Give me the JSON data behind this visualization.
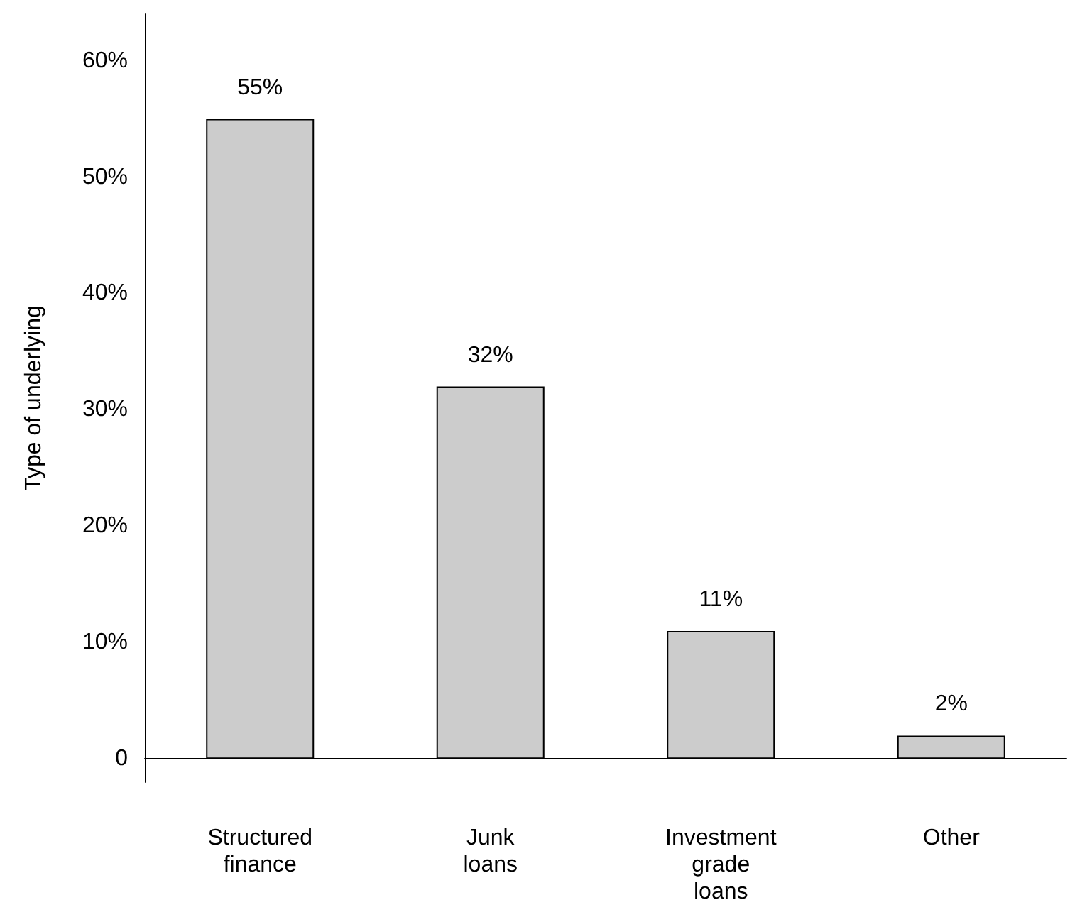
{
  "chart_data": {
    "type": "bar",
    "ylabel": "Type of underlying",
    "categories": [
      "Structured\nfinance",
      "Junk\nloans",
      "Investment\ngrade\nloans",
      "Other"
    ],
    "values": [
      55,
      32,
      11,
      2
    ],
    "value_labels": [
      "55%",
      "32%",
      "11%",
      "2%"
    ],
    "color": "#cccccc",
    "ylim": [
      -2,
      64
    ],
    "yticks": [
      {
        "value": 0,
        "label": "0"
      },
      {
        "value": 10,
        "label": "10%"
      },
      {
        "value": 20,
        "label": "20%"
      },
      {
        "value": 30,
        "label": "30%"
      },
      {
        "value": 40,
        "label": "40%"
      },
      {
        "value": 50,
        "label": "50%"
      },
      {
        "value": 60,
        "label": "60%"
      }
    ]
  }
}
